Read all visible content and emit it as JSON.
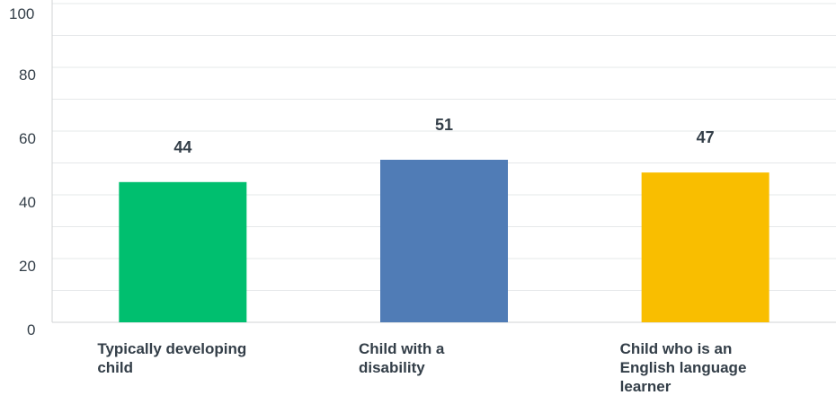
{
  "chart_data": {
    "type": "bar",
    "title": "",
    "xlabel": "",
    "ylabel": "",
    "ylim": [
      0,
      100
    ],
    "yticks": [
      0,
      20,
      40,
      60,
      80,
      100
    ],
    "grid": true,
    "categories": [
      "Typically developing child",
      "Child with a disability",
      "Child who is an English language learner"
    ],
    "values": [
      44,
      51,
      47
    ],
    "data_labels": [
      "44",
      "51",
      "47"
    ],
    "bar_colors": [
      "#00bf6f",
      "#507cb6",
      "#f9be00"
    ],
    "grid_color": "#e6e8ea",
    "axis_color": "#d0d3d6"
  }
}
